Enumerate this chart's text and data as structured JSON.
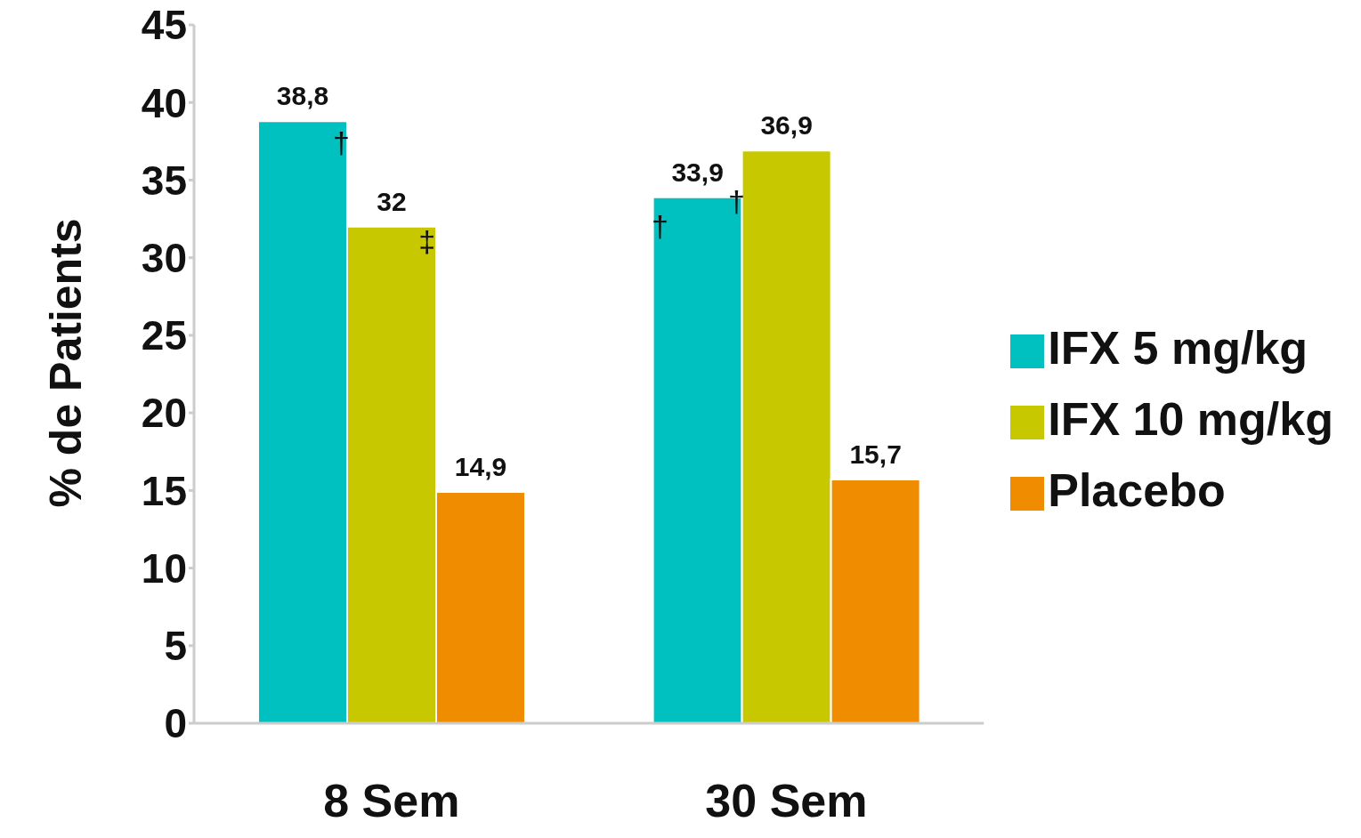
{
  "chart_data": {
    "type": "bar",
    "ylabel": "% de Patients",
    "categories": [
      "8   Sem",
      "30 Sem"
    ],
    "series": [
      {
        "name": "IFX 5 mg/kg",
        "color": "#00c0c0",
        "values": [
          38.8,
          33.9
        ],
        "value_labels": [
          "38,8",
          "33,9"
        ]
      },
      {
        "name": "IFX 10 mg/kg",
        "color": "#c8c800",
        "values": [
          32,
          36.9
        ],
        "value_labels": [
          "32",
          "36,9"
        ]
      },
      {
        "name": "Placebo",
        "color": "#f08c00",
        "values": [
          14.9,
          15.7
        ],
        "value_labels": [
          "14,9",
          "15,7"
        ]
      }
    ],
    "ylim": [
      0,
      45
    ],
    "yticks": [
      0,
      5,
      10,
      15,
      20,
      25,
      30,
      35,
      40,
      45
    ],
    "grid": false,
    "legend": "right",
    "annotations": [
      "†",
      {
        "text": "‡",
        "x": "8   Sem",
        "y": 32
      },
      "†",
      "†"
    ]
  }
}
